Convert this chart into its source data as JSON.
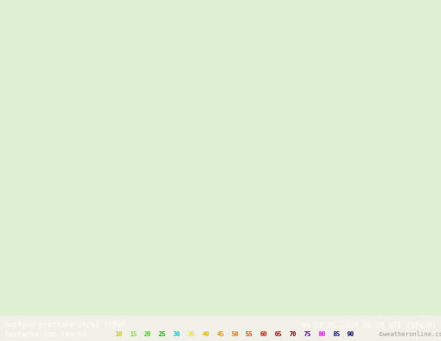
{
  "title_left": "Surface pressure [hPa] ECMWF",
  "title_right": "We 08-05-2024 00:00 UTC (18+30)",
  "legend_label": "Isotachs 10m (km/h)",
  "copyright": "©weatheronline.co.uk",
  "isotach_values": [
    10,
    15,
    20,
    25,
    30,
    35,
    40,
    45,
    50,
    55,
    60,
    65,
    70,
    75,
    80,
    85,
    90
  ],
  "isotach_colors": [
    "#c8f0c8",
    "#a0e878",
    "#78e050",
    "#50d828",
    "#28c800",
    "#f0f000",
    "#f0c800",
    "#f0a000",
    "#f07800",
    "#f05000",
    "#e82800",
    "#c00000",
    "#980000",
    "#700000",
    "#4800c8",
    "#2800a0",
    "#000078"
  ],
  "bg_color": "#000000",
  "text_color": "#ffffff",
  "fig_width": 6.34,
  "fig_height": 4.9,
  "map_image_placeholder": true
}
